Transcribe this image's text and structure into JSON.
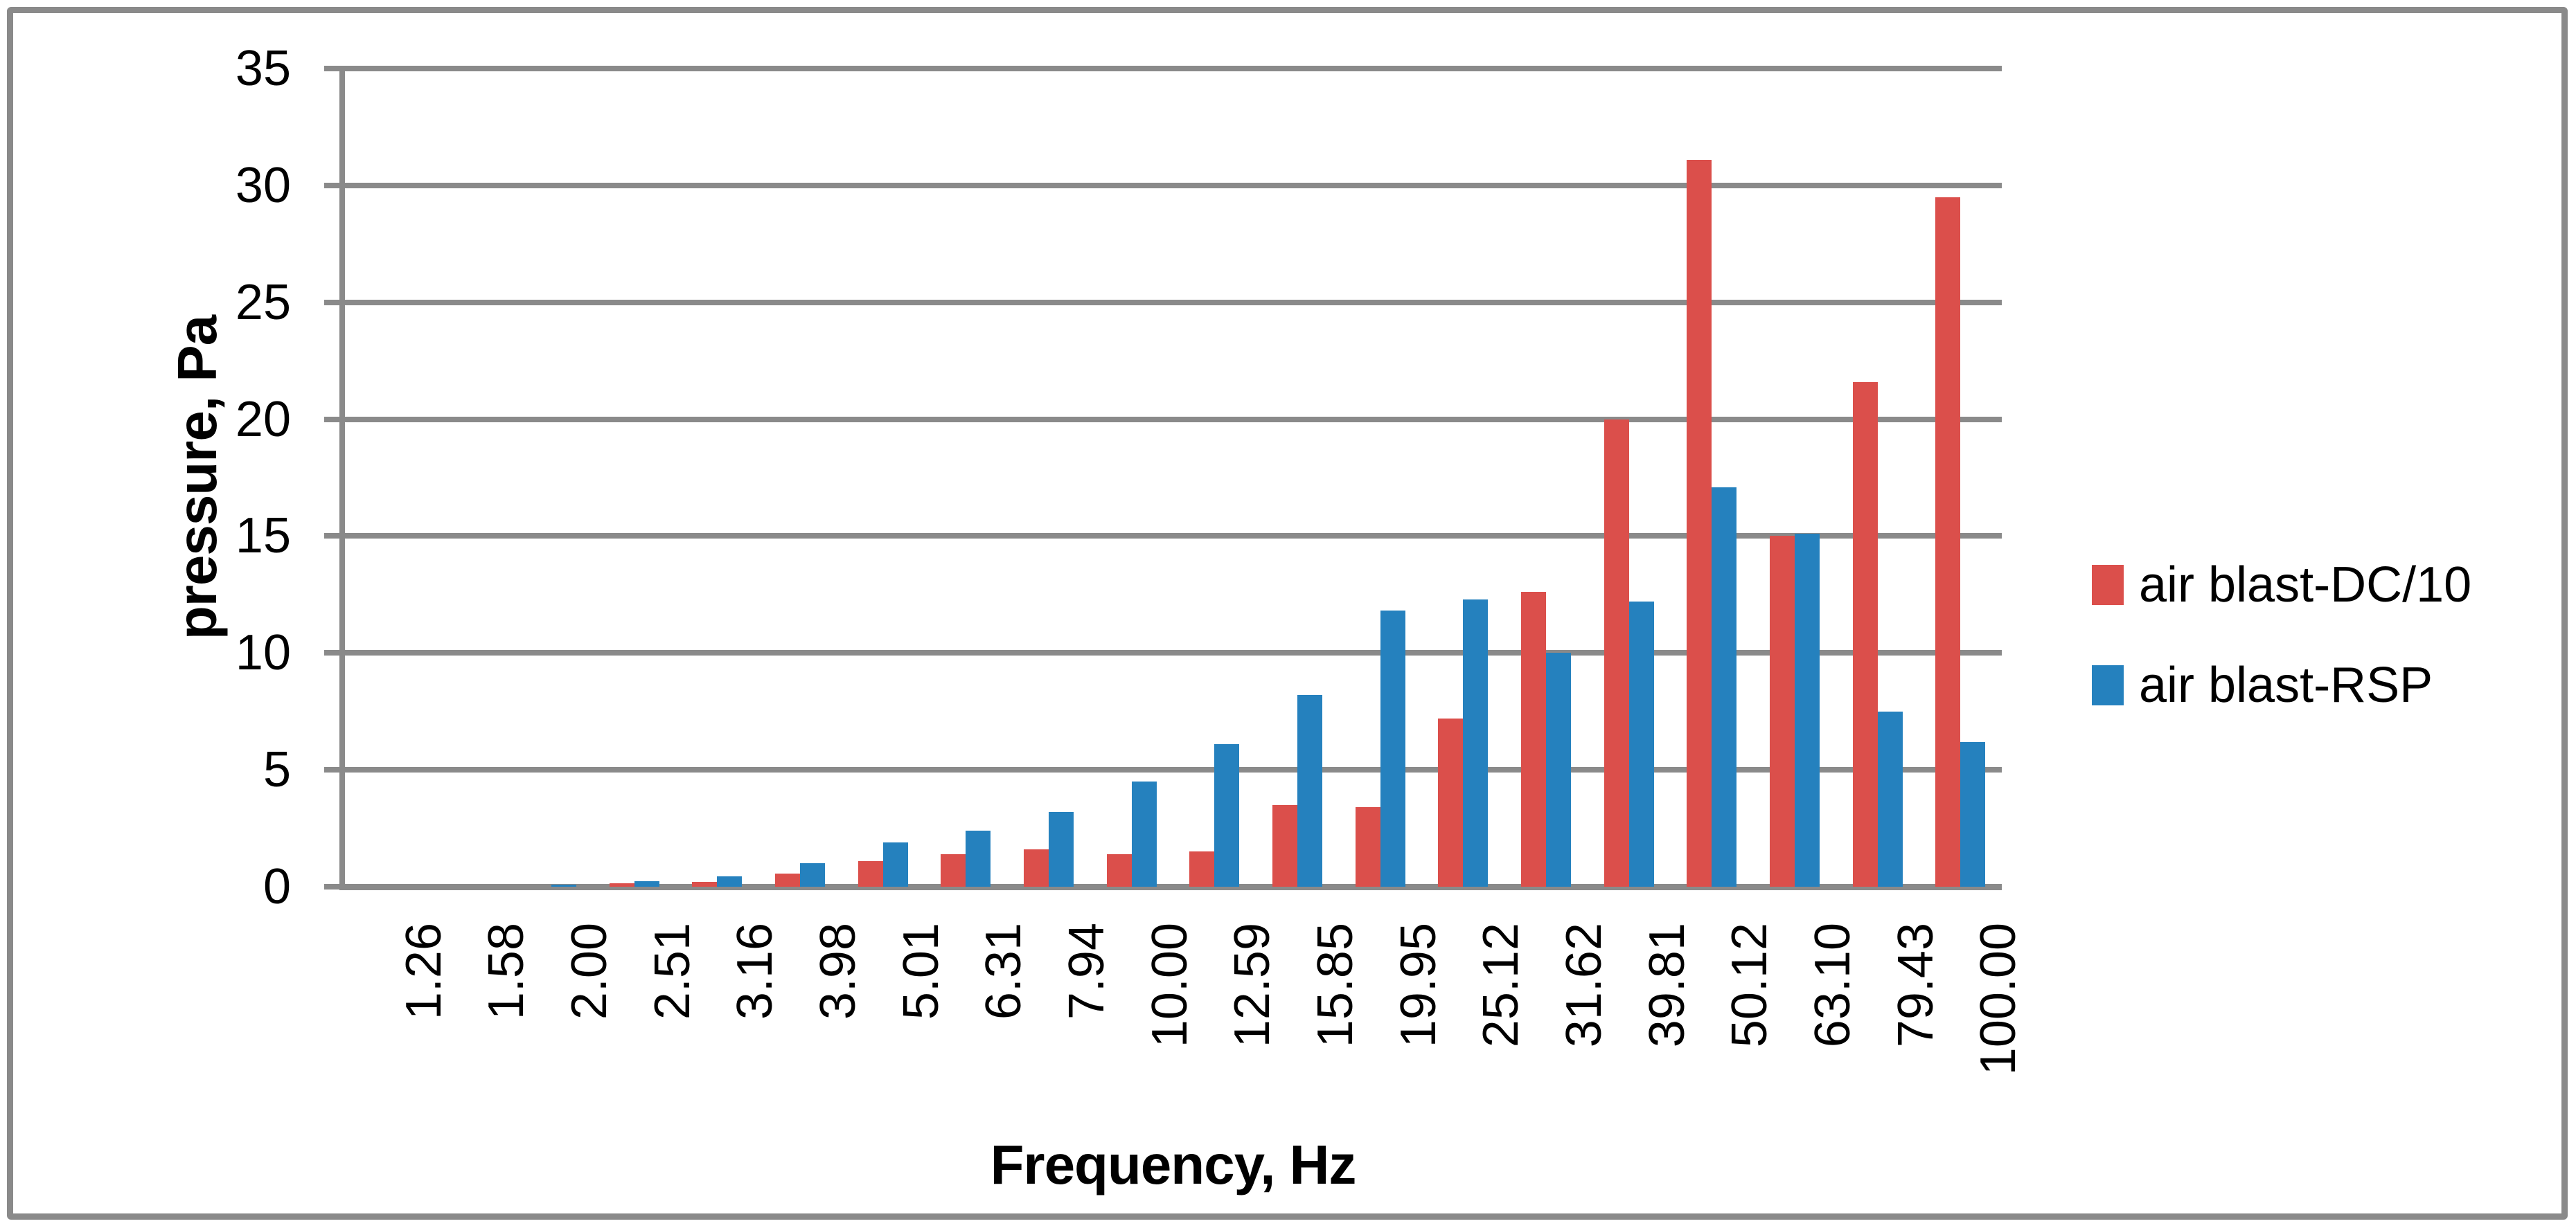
{
  "chart_data": {
    "type": "bar",
    "title": "",
    "xlabel": "Frequency, Hz",
    "ylabel": "pressure, Pa",
    "categories": [
      "1.26",
      "1.58",
      "2.00",
      "2.51",
      "3.16",
      "3.98",
      "5.01",
      "6.31",
      "7.94",
      "10.00",
      "12.59",
      "15.85",
      "19.95",
      "25.12",
      "31.62",
      "39.81",
      "50.12",
      "63.10",
      "79.43",
      "100.00"
    ],
    "series": [
      {
        "name": "air blast-DC/10",
        "color": "#DB4F4B",
        "values": [
          0,
          0,
          0,
          0.15,
          0.2,
          0.55,
          1.1,
          1.4,
          1.6,
          1.4,
          1.5,
          3.5,
          3.4,
          7.2,
          12.6,
          20.0,
          31.1,
          15.0,
          21.6,
          29.5
        ]
      },
      {
        "name": "air blast-RSP",
        "color": "#2581BE",
        "values": [
          0,
          0,
          0.1,
          0.25,
          0.45,
          1.0,
          1.9,
          2.4,
          3.2,
          4.5,
          6.1,
          8.2,
          11.8,
          12.3,
          10.0,
          12.2,
          17.1,
          15.1,
          7.5,
          6.2
        ]
      }
    ],
    "ylim": [
      0,
      35
    ],
    "yticks": [
      0,
      5,
      10,
      15,
      20,
      25,
      30,
      35
    ],
    "grid": true,
    "legend_position": "right"
  },
  "frame": {
    "border_color": "#8A8A8A",
    "background": "#FFFFFF"
  },
  "axes": {
    "line_color": "#8A8A8A",
    "text_color": "#000000"
  }
}
